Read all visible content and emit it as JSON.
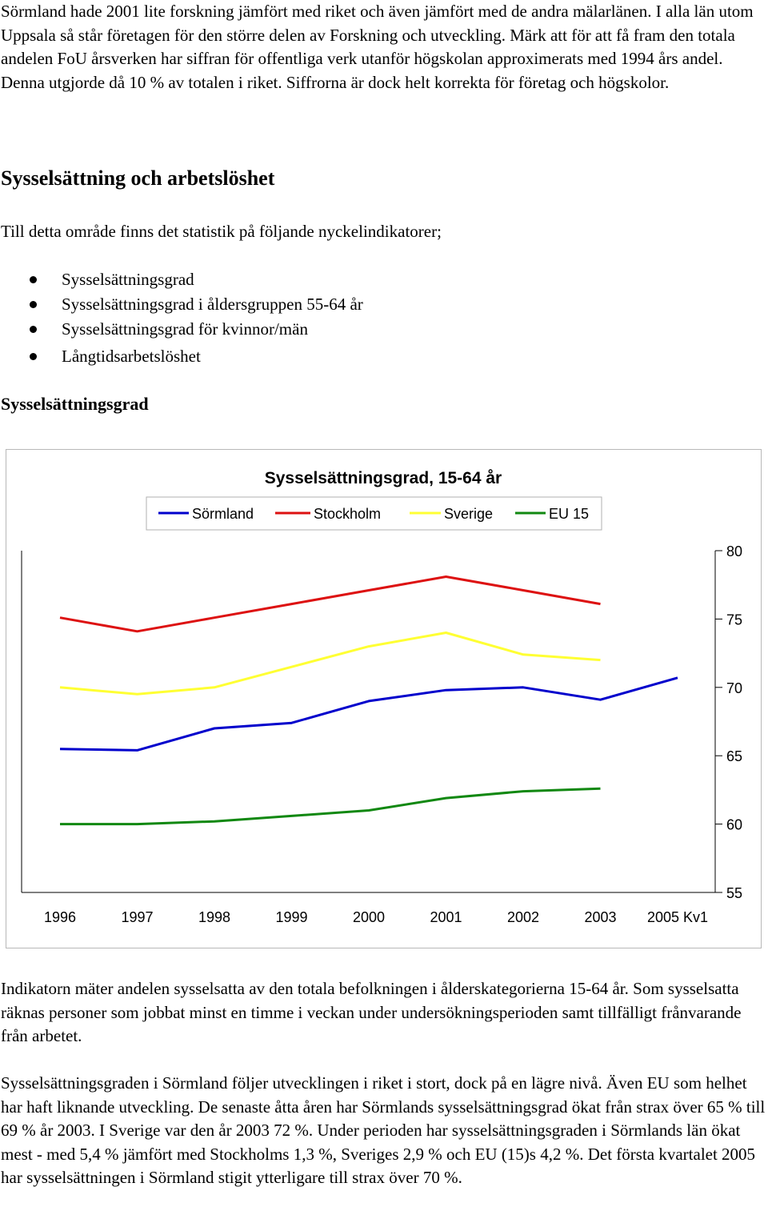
{
  "intro_paragraph": "Sörmland hade 2001 lite forskning jämfört med riket och även jämfört med de andra mälarlänen. I alla län utom Uppsala så står företagen för den större delen av Forskning och utveckling. Märk att för att få fram den totala andelen FoU årsverken har siffran för offentliga verk utanför högskolan approximerats med 1994 års andel. Denna utgjorde då 10 % av totalen i riket. Siffrorna är dock helt korrekta för företag och högskolor.",
  "section_heading": "Sysselsättning och arbetslöshet",
  "section_intro": "Till detta område finns det statistik på följande nyckelindikatorer;",
  "indicators": [
    "Sysselsättningsgrad",
    "Sysselsättningsgrad i åldersgruppen 55-64 år",
    "Sysselsättningsgrad för kvinnor/män",
    "Långtidsarbetslöshet"
  ],
  "subheading": "Sysselsättningsgrad",
  "chart_data": {
    "type": "line",
    "title": "Sysselsättningsgrad, 15-64 år",
    "categories": [
      "1996",
      "1997",
      "1998",
      "1999",
      "2000",
      "2001",
      "2002",
      "2003",
      "2005 Kv1"
    ],
    "ylim": [
      55,
      80
    ],
    "yticks": [
      80,
      75,
      70,
      65,
      60,
      55
    ],
    "y_axis_side": "right",
    "legend_position": "top",
    "grid": false,
    "series": [
      {
        "name": "Sörmland",
        "color": "#0000cc",
        "values": [
          65.5,
          65.4,
          67.0,
          67.4,
          69.0,
          69.8,
          70.0,
          69.1,
          70.7
        ]
      },
      {
        "name": "Stockholm",
        "color": "#dd1111",
        "values": [
          75.1,
          74.1,
          75.1,
          76.1,
          77.1,
          78.1,
          77.1,
          76.1,
          null
        ]
      },
      {
        "name": "Sverige",
        "color": "#ffff33",
        "values": [
          70.0,
          69.5,
          70.0,
          71.5,
          73.0,
          74.0,
          72.4,
          72.0,
          null
        ]
      },
      {
        "name": "EU 15",
        "color": "#118811",
        "values": [
          60.0,
          60.0,
          60.2,
          60.6,
          61.0,
          61.9,
          62.4,
          62.6,
          null
        ]
      }
    ]
  },
  "closing_paragraph_1": "Indikatorn mäter andelen sysselsatta av den totala befolkningen i ålderskategorierna 15-64 år. Som sysselsatta räknas personer som jobbat minst en timme i veckan under undersökningsperioden samt tillfälligt frånvarande från arbetet.",
  "closing_paragraph_2": "Sysselsättningsgraden i Sörmland följer utvecklingen i riket i stort, dock på en lägre nivå. Även EU som helhet har haft liknande utveckling. De senaste åtta åren har Sörmlands sysselsättningsgrad ökat från strax över 65 % till 69 % år 2003. I Sverige var den år 2003 72 %. Under perioden har sysselsättningsgraden i Sörmlands län ökat mest - med 5,4 % jämfört med Stockholms 1,3 %, Sveriges 2,9 % och EU (15)s 4,2 %. Det första kvartalet 2005 har sysselsättningen i Sörmland stigit ytterligare till strax över 70 %."
}
